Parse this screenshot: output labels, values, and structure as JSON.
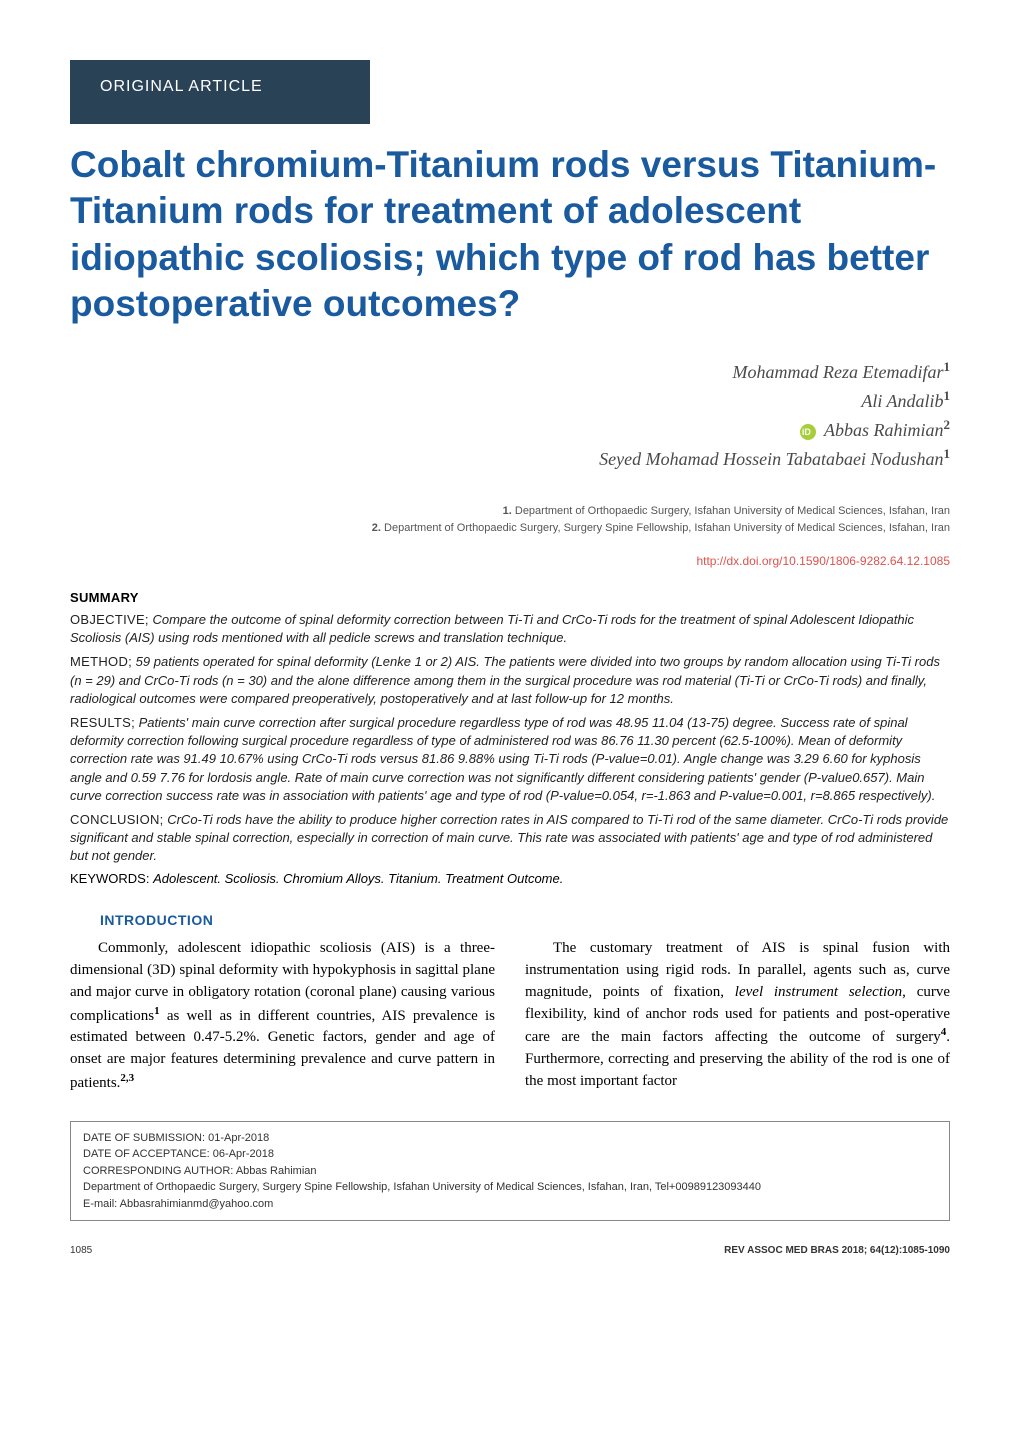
{
  "article_type": "ORIGINAL ARTICLE",
  "title": "Cobalt chromium-Titanium rods versus Titanium-Titanium rods for treatment of adolescent idiopathic scoliosis; which type of rod has better postoperative outcomes?",
  "authors": [
    {
      "name": "Mohammad Reza Etemadifar",
      "sup": "1",
      "orcid": false
    },
    {
      "name": "Ali Andalib",
      "sup": "1",
      "orcid": false
    },
    {
      "name": "Abbas Rahimian",
      "sup": "2",
      "orcid": true
    },
    {
      "name": "Seyed Mohamad Hossein Tabatabaei Nodushan",
      "sup": "1",
      "orcid": false
    }
  ],
  "affiliations": [
    {
      "num": "1.",
      "text": "Department of Orthopaedic Surgery, Isfahan University of Medical Sciences, Isfahan, Iran"
    },
    {
      "num": "2.",
      "text": "Department of Orthopaedic Surgery, Surgery Spine Fellowship, Isfahan University of Medical Sciences, Isfahan, Iran"
    }
  ],
  "doi": "http://dx.doi.org/10.1590/1806-9282.64.12.1085",
  "summary_heading": "SUMMARY",
  "abstract": {
    "objective": {
      "label": "OBJECTIVE;",
      "text": "Compare the outcome of spinal deformity correction between Ti-Ti and CrCo-Ti rods for the treatment of spinal Adolescent Idiopathic Scoliosis (AIS) using rods mentioned with all pedicle screws and translation technique."
    },
    "method": {
      "label": "METHOD;",
      "text": "59 patients operated for spinal deformity (Lenke 1 or 2) AIS. The patients were divided into two groups by random allocation using Ti-Ti rods (n = 29) and CrCo-Ti rods (n = 30) and the alone difference among them in the surgical procedure was rod material (Ti-Ti  or CrCo-Ti rods) and finally, radiological outcomes were compared preoperatively, postoperatively and at last follow-up  for 12 months."
    },
    "results": {
      "label": "RESULTS;",
      "text": "Patients' main curve correction after surgical procedure regardless type of rod was 48.95  11.04 (13-75) degree. Success rate of spinal deformity correction following surgical procedure regardless of type of administered rod was 86.76   11.30 percent (62.5-100%). Mean of deformity correction rate was 91.49  10.67% using CrCo-Ti rods versus 81.86  9.88% using Ti-Ti rods (P-value=0.01). Angle change was 3.29  6.60 for kyphosis angle and 0.59  7.76 for lordosis angle. Rate of main curve correction was not significantly different considering patients' gender (P-value0.657). Main curve correction success rate was in association with patients' age and type of rod (P-value=0.054, r=-1.863 and P-value=0.001, r=8.865 respectively)."
    },
    "conclusion": {
      "label": "CONCLUSION;",
      "text": "CrCo-Ti rods have the ability to produce higher correction rates in AIS compared to Ti-Ti rod of the same diameter. CrCo-Ti rods provide significant and stable spinal correction, especially in correction of main curve. This rate was associated with patients' age and type of rod administered but not gender."
    }
  },
  "keywords": {
    "label": "KEYWORDS:",
    "text": "Adolescent. Scoliosis. Chromium Alloys. Titanium. Treatment Outcome."
  },
  "intro_heading": "INTRODUCTION",
  "body_para_1_part1": "Commonly, adolescent idiopathic scoliosis (AIS) is a three-dimensional (3D) spinal deformity with hypokyphosis in sagittal plane and major curve in obligatory rotation (coronal plane) causing various complications",
  "body_para_1_sup1": "1",
  "body_para_1_part2": " as well as in different countries, AIS prevalence is estimated between 0.47-5.2%. Genetic factors, gender and age of onset are major features determining prevalence and curve pattern in patients.",
  "body_para_1_sup2": "2,3",
  "body_para_2_part1": "The customary treatment of AIS is spinal fusion with instrumentation using rigid rods. In parallel, agents such as, curve magnitude, points of fixation, ",
  "body_para_2_italic": "level instrument selection",
  "body_para_2_part2": ", curve flexibility, kind of anchor rods used for patients and post-operative care are the main factors affecting the outcome of surgery",
  "body_para_2_sup1": "4",
  "body_para_2_part3": ". Furthermore, correcting and preserving the ability of the rod is one of the most important factor",
  "footer": {
    "submission_label": "DATE OF SUBMISSION:",
    "submission_date": "01-Apr-2018",
    "acceptance_label": "DATE OF ACCEPTANCE:",
    "acceptance_date": "06-Apr-2018",
    "corresponding_label": "CORRESPONDING AUTHOR:",
    "corresponding_name": "Abbas Rahimian",
    "corresponding_address": "Department of Orthopaedic Surgery, Surgery Spine Fellowship, Isfahan University of Medical Sciences, Isfahan, Iran, Tel+00989123093440",
    "corresponding_email": "E-mail: Abbasrahimianmd@yahoo.com"
  },
  "page_number": "1085",
  "journal_ref": "REV ASSOC MED BRAS 2018; 64(12):1085-1090",
  "colors": {
    "title_blue": "#1a5a9e",
    "box_bg": "#2a4256",
    "doi_red": "#d9534f",
    "orcid_green": "#a6ce39"
  }
}
